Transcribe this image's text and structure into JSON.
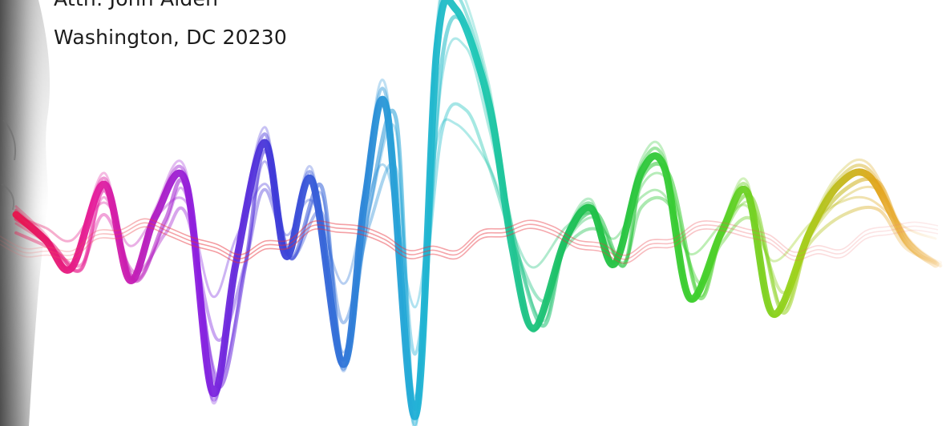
{
  "address": {
    "attention_line": "Attn: John Alden",
    "city_line": "Washington, DC 20230"
  },
  "visual": {
    "subject": "rainbow-sound-wave",
    "side_image": "grayscale-face-profile",
    "background_color": "#ffffff",
    "wave_colors": [
      "#e8123c",
      "#e51c9b",
      "#8a1ee0",
      "#2f53d8",
      "#1fa6d6",
      "#1ec7b8",
      "#1cbf4a",
      "#7fd31a",
      "#e3a31a"
    ]
  }
}
